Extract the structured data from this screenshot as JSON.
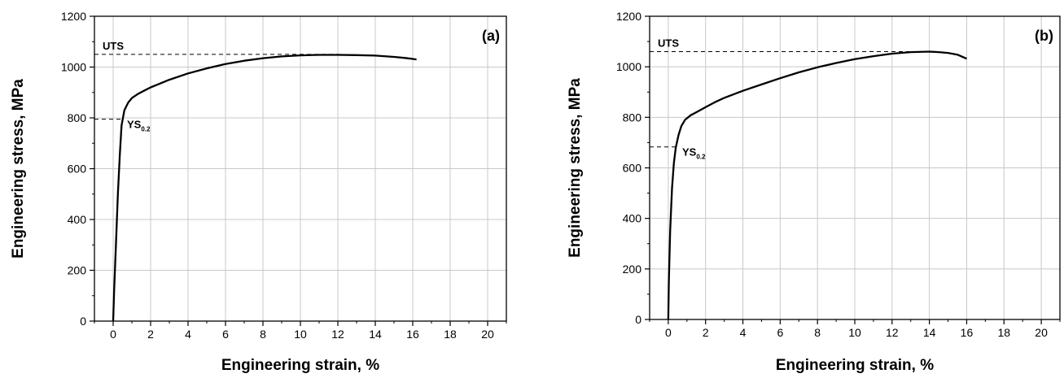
{
  "chart_data": [
    {
      "type": "line",
      "panel_label": "(a)",
      "xlabel": "Engineering strain, %",
      "ylabel": "Engineering stress, MPa",
      "xlim": [
        -1,
        21
      ],
      "ylim": [
        0,
        1200
      ],
      "xticks": [
        0,
        2,
        4,
        6,
        8,
        10,
        12,
        14,
        16,
        18,
        20
      ],
      "yticks": [
        0,
        200,
        400,
        600,
        800,
        1000,
        1200
      ],
      "grid": true,
      "series": [
        {
          "x": [
            0,
            0.05,
            0.15,
            0.25,
            0.35,
            0.45,
            0.6,
            0.8,
            1.0,
            1.3,
            1.6,
            2.0,
            2.5,
            3.0,
            4.0,
            5.0,
            6.0,
            7.0,
            8.0,
            9.0,
            10.0,
            11.0,
            12.0,
            13.0,
            14.0,
            15.0,
            15.6,
            16.2
          ],
          "y": [
            0,
            120,
            300,
            500,
            650,
            770,
            830,
            860,
            878,
            893,
            905,
            920,
            935,
            950,
            975,
            995,
            1012,
            1025,
            1035,
            1042,
            1046,
            1048,
            1048,
            1047,
            1045,
            1040,
            1036,
            1030
          ]
        }
      ],
      "annotations": [
        {
          "label": "UTS",
          "subscript": "",
          "y": 1050,
          "x_end": 12.3
        },
        {
          "label": "YS",
          "subscript": "0.2",
          "y": 795,
          "x_end": 0.4
        }
      ]
    },
    {
      "type": "line",
      "panel_label": "(b)",
      "xlabel": "Engineering strain, %",
      "ylabel": "Engineering stress, MPa",
      "xlim": [
        -1,
        21
      ],
      "ylim": [
        0,
        1200
      ],
      "xticks": [
        0,
        2,
        4,
        6,
        8,
        10,
        12,
        14,
        16,
        18,
        20
      ],
      "yticks": [
        0,
        200,
        400,
        600,
        800,
        1000,
        1200
      ],
      "grid": true,
      "series": [
        {
          "x": [
            0,
            0.03,
            0.1,
            0.2,
            0.3,
            0.4,
            0.55,
            0.7,
            0.9,
            1.2,
            1.5,
            2.0,
            2.5,
            3.0,
            4.0,
            5.0,
            6.0,
            7.0,
            8.0,
            9.0,
            10.0,
            11.0,
            12.0,
            13.0,
            14.0,
            14.5,
            15.0,
            15.5,
            16.0
          ],
          "y": [
            0,
            150,
            350,
            520,
            620,
            680,
            730,
            765,
            790,
            808,
            820,
            840,
            860,
            877,
            905,
            930,
            955,
            978,
            998,
            1015,
            1030,
            1042,
            1052,
            1058,
            1060,
            1058,
            1055,
            1048,
            1032
          ]
        }
      ],
      "annotations": [
        {
          "label": "UTS",
          "subscript": "",
          "y": 1060,
          "x_end": 14.3
        },
        {
          "label": "YS",
          "subscript": "0.2",
          "y": 683,
          "x_end": 0.4
        }
      ]
    }
  ]
}
